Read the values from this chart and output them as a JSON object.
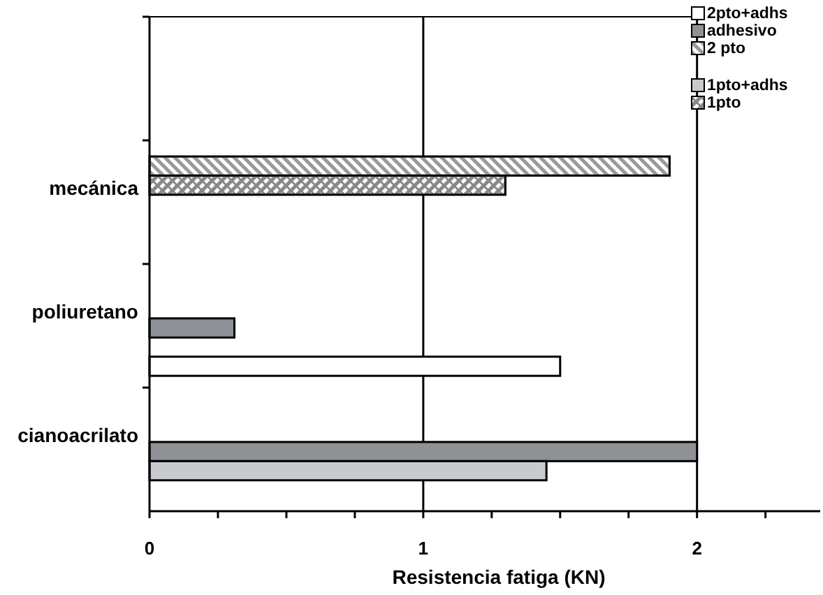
{
  "chart_data": {
    "type": "bar",
    "orientation": "horizontal",
    "xlabel": "Resistencia fatiga (KN)",
    "categories": [
      null,
      "mecánica",
      "poliuretano",
      "cianoacrilato"
    ],
    "series": [
      {
        "name": "2pto+adhs",
        "color": "#ffffff",
        "values": [
          null,
          null,
          1.5,
          null
        ]
      },
      {
        "name": "adhesivo",
        "color": "#8e9196",
        "values": [
          null,
          null,
          0.31,
          2.0
        ]
      },
      {
        "name": "2 pto",
        "color": "#999999",
        "values": [
          null,
          1.9,
          null,
          null
        ]
      },
      {
        "name": "1pto+adhs",
        "color": "#c8cacd",
        "values": [
          null,
          null,
          null,
          1.45
        ]
      },
      {
        "name": "1pto",
        "color": "#888888",
        "values": [
          null,
          1.3,
          null,
          null
        ]
      }
    ],
    "xlim": [
      0,
      2.45
    ],
    "xticks": [
      0,
      {
        "value": 0.25,
        "label": null
      },
      {
        "value": 0.5,
        "label": null
      },
      {
        "value": 0.75,
        "label": null
      },
      1,
      {
        "value": 1.25,
        "label": null
      },
      {
        "value": 1.5,
        "label": null
      },
      {
        "value": 1.75,
        "label": null
      },
      2,
      {
        "value": 2.25,
        "label": null
      }
    ],
    "grid": "x",
    "legend": "top right"
  }
}
